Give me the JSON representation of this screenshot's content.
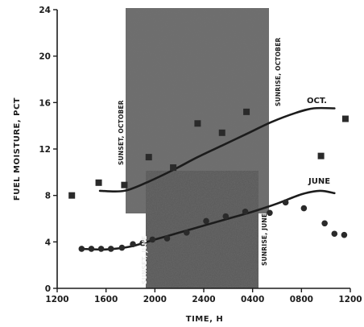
{
  "chart_data": {
    "type": "scatter",
    "xlabel": "TIME, H",
    "ylabel": "FUEL MOISTURE, PCT",
    "x_ticks": [
      "1200",
      "1600",
      "2000",
      "2400",
      "0400",
      "0800",
      "1200"
    ],
    "y_ticks": [
      "0",
      "4",
      "8",
      "12",
      "16",
      "20",
      "24"
    ],
    "xlim": [
      12,
      36
    ],
    "ylim": [
      0,
      24
    ],
    "grid": false,
    "legend": "none",
    "shaded_periods": [
      {
        "name": "OCT.",
        "start": 18.05,
        "end": 30.2
      },
      {
        "name": "JUNE",
        "start": 20.05,
        "end": 28.8
      }
    ],
    "annotations": [
      {
        "text": "SUNSET, OCTOBER",
        "x": 18.05
      },
      {
        "text": "SUNRISE, OCTOBER",
        "x": 30.2
      },
      {
        "text": "SUNSET, JUNE",
        "x": 20.05
      },
      {
        "text": "SUNRISE, JUNE",
        "x": 28.8
      }
    ],
    "series": [
      {
        "name": "OCT.",
        "points": [
          {
            "x": 13.2,
            "y": 8.0
          },
          {
            "x": 15.4,
            "y": 9.1
          },
          {
            "x": 17.5,
            "y": 8.9
          },
          {
            "x": 19.5,
            "y": 11.3
          },
          {
            "x": 21.5,
            "y": 10.4
          },
          {
            "x": 23.5,
            "y": 14.2
          },
          {
            "x": 25.5,
            "y": 13.4
          },
          {
            "x": 27.5,
            "y": 15.2
          },
          {
            "x": 33.6,
            "y": 11.4
          },
          {
            "x": 35.6,
            "y": 14.6
          }
        ],
        "trend": [
          {
            "x": 15.5,
            "y": 8.4
          },
          {
            "x": 17.5,
            "y": 8.4
          },
          {
            "x": 19.5,
            "y": 9.2
          },
          {
            "x": 21.5,
            "y": 10.2
          },
          {
            "x": 23.5,
            "y": 11.3
          },
          {
            "x": 25.5,
            "y": 12.3
          },
          {
            "x": 27.5,
            "y": 13.3
          },
          {
            "x": 29.5,
            "y": 14.3
          },
          {
            "x": 31.5,
            "y": 15.1
          },
          {
            "x": 33.0,
            "y": 15.5
          },
          {
            "x": 34.7,
            "y": 15.5
          }
        ]
      },
      {
        "name": "JUNE",
        "points": [
          {
            "x": 14.0,
            "y": 3.4
          },
          {
            "x": 14.8,
            "y": 3.4
          },
          {
            "x": 15.6,
            "y": 3.4
          },
          {
            "x": 16.4,
            "y": 3.4
          },
          {
            "x": 17.3,
            "y": 3.5
          },
          {
            "x": 18.2,
            "y": 3.8
          },
          {
            "x": 19.0,
            "y": 3.9
          },
          {
            "x": 19.8,
            "y": 4.2
          },
          {
            "x": 21.0,
            "y": 4.3
          },
          {
            "x": 22.6,
            "y": 4.8
          },
          {
            "x": 24.2,
            "y": 5.8
          },
          {
            "x": 25.8,
            "y": 6.2
          },
          {
            "x": 27.4,
            "y": 6.6
          },
          {
            "x": 29.4,
            "y": 6.5
          },
          {
            "x": 30.7,
            "y": 7.4
          },
          {
            "x": 32.2,
            "y": 6.9
          },
          {
            "x": 33.9,
            "y": 5.6
          },
          {
            "x": 34.7,
            "y": 4.7
          },
          {
            "x": 35.5,
            "y": 4.6
          }
        ],
        "trend": [
          {
            "x": 14.0,
            "y": 3.4
          },
          {
            "x": 16.0,
            "y": 3.35
          },
          {
            "x": 18.0,
            "y": 3.6
          },
          {
            "x": 20.0,
            "y": 4.2
          },
          {
            "x": 22.0,
            "y": 4.8
          },
          {
            "x": 24.0,
            "y": 5.4
          },
          {
            "x": 26.0,
            "y": 6.0
          },
          {
            "x": 28.0,
            "y": 6.6
          },
          {
            "x": 30.0,
            "y": 7.3
          },
          {
            "x": 32.0,
            "y": 8.1
          },
          {
            "x": 33.5,
            "y": 8.4
          },
          {
            "x": 34.7,
            "y": 8.2
          }
        ]
      }
    ]
  }
}
